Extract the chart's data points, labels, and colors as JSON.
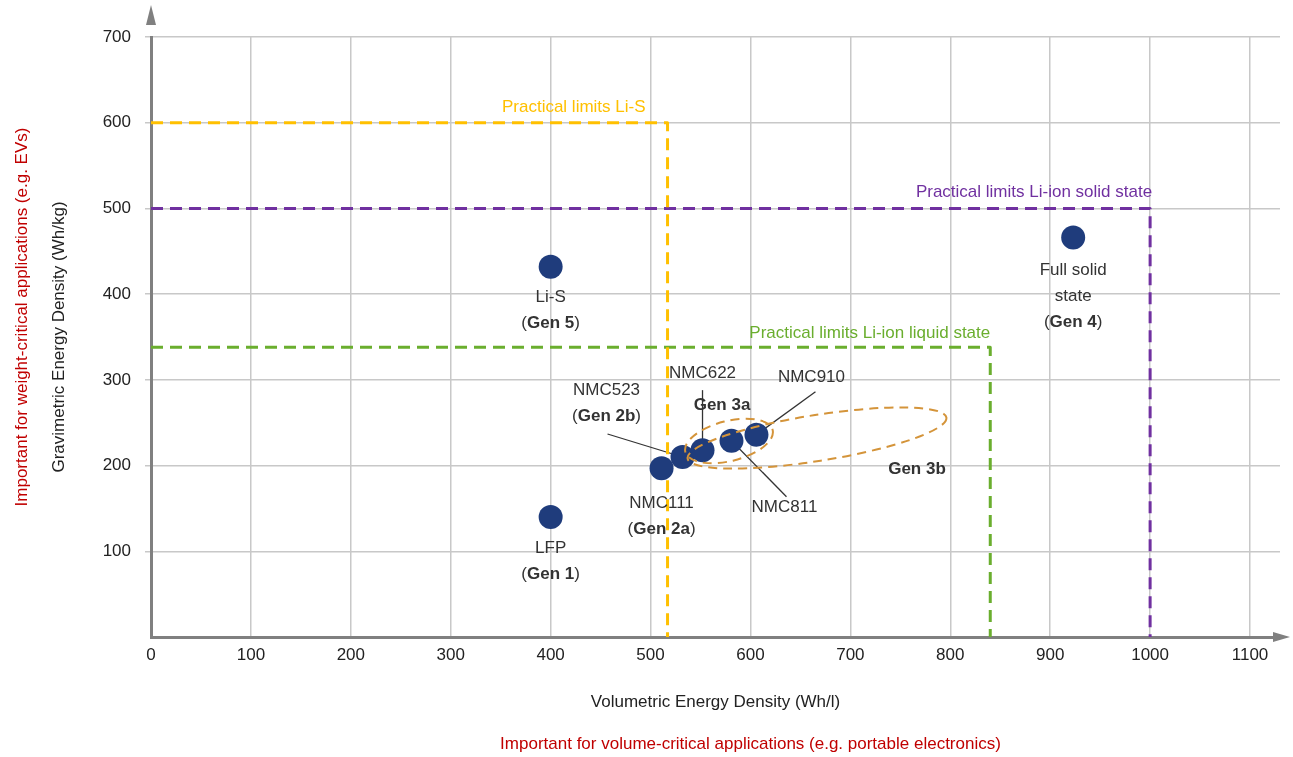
{
  "chart_data": {
    "type": "scatter",
    "xlabel": "Volumetric Energy Density (Wh/l)",
    "ylabel": "Gravimetric Energy Density (Wh/kg)",
    "xlim": [
      0,
      1130
    ],
    "xticks": [
      0,
      100,
      200,
      300,
      400,
      500,
      600,
      700,
      800,
      900,
      1000,
      1100
    ],
    "ylim": [
      0,
      700
    ],
    "yticks": [
      100,
      200,
      300,
      400,
      500,
      600,
      700
    ],
    "grid": true,
    "legend": false,
    "marker": "circle",
    "series": [
      {
        "color": "#1f3c7c",
        "x": [
          400,
          400,
          511,
          532,
          552,
          581,
          606,
          923
        ],
        "values": [
          140,
          432,
          197,
          210,
          218,
          229,
          236,
          466
        ]
      },
      {
        "type": "line",
        "name": "Practical limits Li-S",
        "color": "#ffc000",
        "line_style": "dashed",
        "marker": "none",
        "x": [
          0,
          517,
          517
        ],
        "values": [
          600,
          600,
          0
        ]
      },
      {
        "type": "line",
        "name": "Practical limits Li-ion solid state",
        "color": "#7030a0",
        "line_style": "dashed",
        "marker": "none",
        "x": [
          0,
          1000,
          1000
        ],
        "values": [
          500,
          500,
          0
        ]
      },
      {
        "type": "line",
        "name": "Practical limits Li-ion liquid state",
        "color": "#6aae2e",
        "line_style": "dashed",
        "marker": "none",
        "x": [
          0,
          840,
          840
        ],
        "values": [
          338,
          338,
          0
        ]
      }
    ],
    "annotations": [
      {
        "text": "LFP\n(Gen 1)",
        "x": 400,
        "y": 140
      },
      {
        "text": "Li-S\n(Gen 5)",
        "x": 400,
        "y": 432
      },
      {
        "text": "NMC111\n(Gen 2a)",
        "x": 511,
        "y": 197
      },
      {
        "text": "NMC523\n(Gen 2b)",
        "x": 532,
        "y": 210
      },
      {
        "text": "NMC622",
        "x": 552,
        "y": 218
      },
      {
        "text": "NMC811",
        "x": 581,
        "y": 229
      },
      {
        "text": "NMC910",
        "x": 606,
        "y": 236
      },
      {
        "text": "Full solid\nstate\n(Gen 4)",
        "x": 923,
        "y": 466
      },
      "Gen 3a",
      "Gen 3b",
      "Important for volume-critical applications (e.g. portable electronics)",
      "Important for weight-critical applications (e.g. EVs)"
    ]
  }
}
